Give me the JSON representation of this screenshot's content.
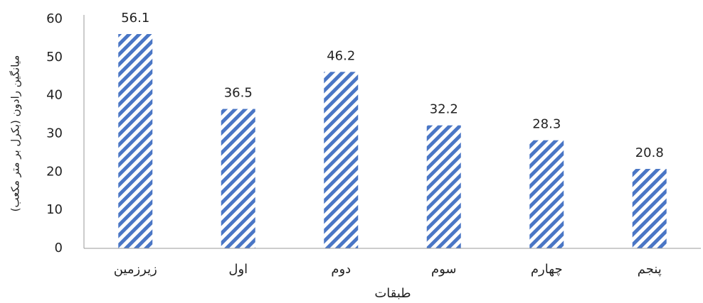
{
  "chart_data": {
    "type": "bar",
    "categories": [
      "زیرزمین",
      "اول",
      "دوم",
      "سوم",
      "چهارم",
      "پنجم"
    ],
    "values": [
      56.1,
      36.5,
      46.2,
      32.2,
      28.3,
      20.8
    ],
    "color": "#4a76c5",
    "x_label": "طبقات",
    "y_label": "میانگین رادون (بکرل بر متر مکعب)",
    "ylim": [
      0,
      60
    ],
    "yticks": [
      0,
      10,
      20,
      30,
      40,
      50,
      60
    ],
    "grid": false
  }
}
